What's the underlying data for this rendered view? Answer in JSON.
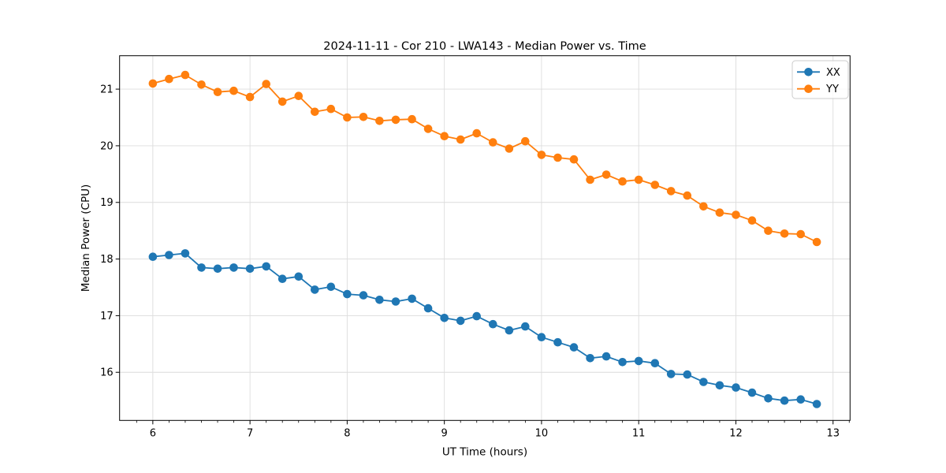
{
  "figure": {
    "background": "#ffffff",
    "spine_color": "#000000",
    "grid_color": "#dcdcdc"
  },
  "chart_data": {
    "type": "line",
    "title": "2024-11-11 - Cor 210 - LWA143 - Median Power vs. Time",
    "xlabel": "UT Time (hours)",
    "ylabel": "Median Power (CPU)",
    "xlim": [
      5.658,
      13.175
    ],
    "ylim": [
      15.15,
      21.59
    ],
    "xticks": [
      6,
      7,
      8,
      9,
      10,
      11,
      12,
      13
    ],
    "yticks": [
      16,
      17,
      18,
      19,
      20,
      21
    ],
    "x_minor_step": 0.16667,
    "grid": true,
    "legend_position": "upper right",
    "x": [
      6.0,
      6.167,
      6.333,
      6.5,
      6.667,
      6.833,
      7.0,
      7.167,
      7.333,
      7.5,
      7.667,
      7.833,
      8.0,
      8.167,
      8.333,
      8.5,
      8.667,
      8.833,
      9.0,
      9.167,
      9.333,
      9.5,
      9.667,
      9.833,
      10.0,
      10.167,
      10.333,
      10.5,
      10.667,
      10.833,
      11.0,
      11.167,
      11.333,
      11.5,
      11.667,
      11.833,
      12.0,
      12.167,
      12.333,
      12.5,
      12.667,
      12.833
    ],
    "series": [
      {
        "name": "XX",
        "color": "#1f77b4",
        "marker": "circle",
        "values": [
          18.04,
          18.07,
          18.1,
          17.85,
          17.83,
          17.85,
          17.83,
          17.87,
          17.65,
          17.69,
          17.46,
          17.51,
          17.38,
          17.36,
          17.28,
          17.25,
          17.3,
          17.13,
          16.96,
          16.91,
          16.99,
          16.85,
          16.74,
          16.81,
          16.62,
          16.53,
          16.44,
          16.25,
          16.28,
          16.18,
          16.2,
          16.16,
          15.97,
          15.96,
          15.83,
          15.77,
          15.73,
          15.64,
          15.54,
          15.5,
          15.52,
          15.44
        ]
      },
      {
        "name": "YY",
        "color": "#ff7f0e",
        "marker": "circle",
        "values": [
          21.1,
          21.18,
          21.25,
          21.08,
          20.95,
          20.97,
          20.86,
          21.09,
          20.78,
          20.88,
          20.6,
          20.65,
          20.5,
          20.51,
          20.44,
          20.46,
          20.47,
          20.3,
          20.17,
          20.11,
          20.22,
          20.06,
          19.95,
          20.08,
          19.84,
          19.79,
          19.76,
          19.4,
          19.49,
          19.37,
          19.4,
          19.31,
          19.2,
          19.12,
          18.93,
          18.82,
          18.78,
          18.68,
          18.5,
          18.45,
          18.44,
          18.3
        ]
      }
    ]
  }
}
